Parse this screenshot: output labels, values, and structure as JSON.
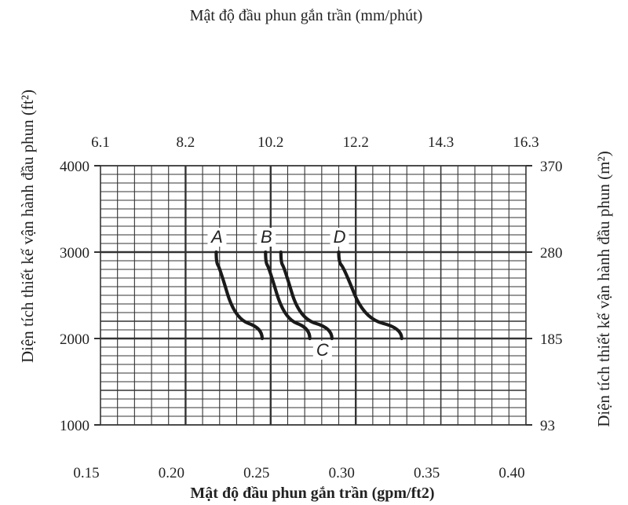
{
  "chart_data": {
    "type": "line",
    "title": "Mật độ đầu phun gắn trần (mm/phút)",
    "xlabel": "Mật độ đầu phun gắn trần (gpm/ft2)",
    "ylabel_left": "Diện tích thiết kế vận hành đầu phun (ft²)",
    "ylabel_right": "Diện tích thiết kế vận hành đầu phun (m²)",
    "xlim": [
      0.15,
      0.4
    ],
    "ylim": [
      1000,
      4000
    ],
    "x_ticks_bottom": [
      "0.15",
      "0.20",
      "0.25",
      "0.30",
      "0.35",
      "0.40"
    ],
    "x_ticks_top": [
      "6.1",
      "8.2",
      "10.2",
      "12.2",
      "14.3",
      "16.3"
    ],
    "y_ticks_left": [
      "1000",
      "2000",
      "3000",
      "4000"
    ],
    "y_ticks_right": [
      "93",
      "185",
      "280",
      "370"
    ],
    "grid": true,
    "series": [
      {
        "name": "A",
        "points": [
          [
            0.218,
            3000
          ],
          [
            0.22,
            2700
          ],
          [
            0.229,
            2350
          ],
          [
            0.245,
            2000
          ]
        ]
      },
      {
        "name": "B",
        "points": [
          [
            0.247,
            3000
          ],
          [
            0.249,
            2700
          ],
          [
            0.258,
            2350
          ],
          [
            0.273,
            2000
          ]
        ]
      },
      {
        "name": "C",
        "points": [
          [
            0.256,
            3000
          ],
          [
            0.258,
            2700
          ],
          [
            0.267,
            2350
          ],
          [
            0.286,
            2000
          ]
        ]
      },
      {
        "name": "D",
        "points": [
          [
            0.29,
            3000
          ],
          [
            0.293,
            2700
          ],
          [
            0.305,
            2350
          ],
          [
            0.327,
            2000
          ]
        ]
      }
    ]
  }
}
